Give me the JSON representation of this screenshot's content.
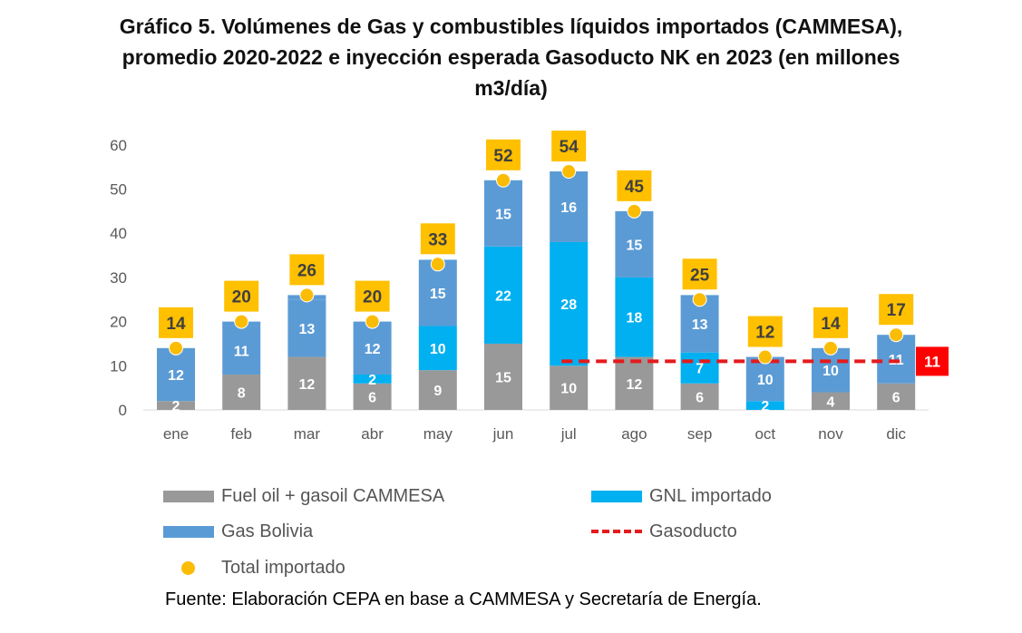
{
  "title_lines": [
    "Gráfico 5. Volúmenes de Gas y combustibles líquidos importados (CAMMESA),",
    "promedio 2020-2022 e inyección esperada Gasoducto NK en 2023 (en millones",
    "m3/día)"
  ],
  "source": "Fuente: Elaboración CEPA en base a CAMMESA y Secretaría de Energía.",
  "chart_data": {
    "type": "bar",
    "stacked": true,
    "categories": [
      "ene",
      "feb",
      "mar",
      "abr",
      "may",
      "jun",
      "jul",
      "ago",
      "sep",
      "oct",
      "nov",
      "dic"
    ],
    "series": [
      {
        "name": "Fuel oil + gasoil CAMMESA",
        "color": "#999999",
        "values": [
          2,
          8,
          12,
          6,
          9,
          15,
          10,
          12,
          6,
          0,
          4,
          6
        ],
        "labels": [
          "2",
          "8",
          "12",
          "6",
          "9",
          "15",
          "10",
          "12",
          "6",
          "",
          "4",
          "6"
        ]
      },
      {
        "name": "GNL importado",
        "color": "#00b0f0",
        "values": [
          0,
          0,
          0,
          2,
          10,
          22,
          28,
          18,
          7,
          2,
          0,
          0
        ],
        "labels": [
          "",
          "",
          "",
          "2",
          "10",
          "22",
          "28",
          "18",
          "7",
          "2",
          "",
          ""
        ]
      },
      {
        "name": "Gas Bolivia",
        "color": "#5b9bd5",
        "values": [
          12,
          11,
          13,
          12,
          15,
          15,
          16,
          15,
          13,
          10,
          10,
          11
        ],
        "labels": [
          "12",
          "11",
          "13",
          "12",
          "15",
          "15",
          "16",
          "15",
          "13",
          "10",
          "10",
          "11"
        ]
      }
    ],
    "totals": {
      "name": "Total importado",
      "color": "#fbbc05",
      "values": [
        14,
        20,
        26,
        20,
        33,
        52,
        54,
        45,
        25,
        12,
        14,
        17
      ],
      "labels": [
        "14",
        "20",
        "26",
        "20",
        "33",
        "52",
        "54",
        "45",
        "25",
        "12",
        "14",
        "17"
      ]
    },
    "gasoducto": {
      "name": "Gasoducto",
      "color": "#e41a1c",
      "value": 11,
      "label": "11",
      "from": "jul",
      "to": "dic"
    },
    "ylim": [
      0,
      60
    ],
    "yticks": [
      "0",
      "10",
      "20",
      "30",
      "40",
      "50",
      "60"
    ],
    "grid": false,
    "legend_position": "bottom"
  }
}
